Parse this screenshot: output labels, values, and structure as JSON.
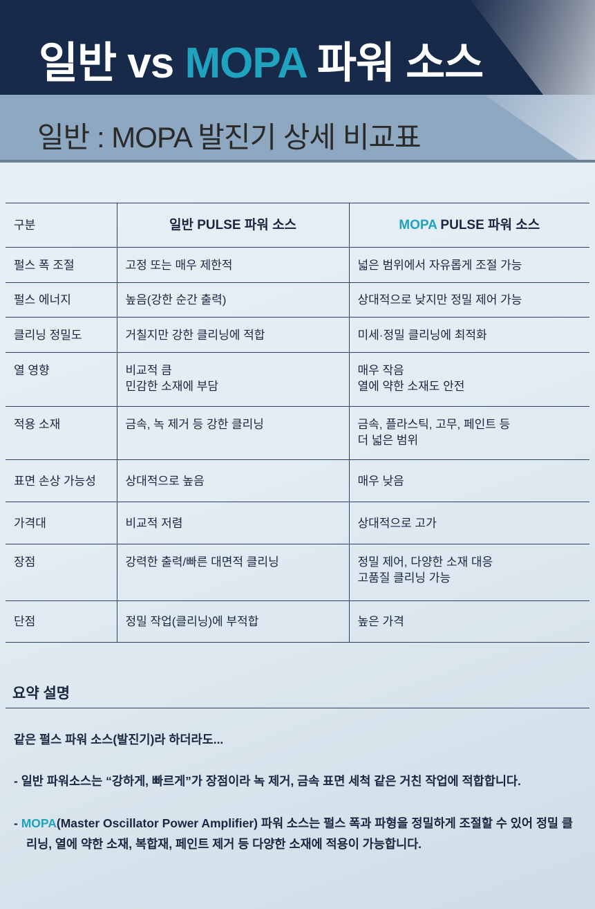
{
  "header": {
    "title_pre": "일반 vs ",
    "title_accent": "MOPA",
    "title_post": " 파워 소스",
    "subtitle": "일반 : MOPA 발진기 상세 비교표",
    "accent_color": "#1fa3bf"
  },
  "table": {
    "headers": {
      "col0": "구분",
      "col1": "일반 PULSE 파워 소스",
      "col2_accent": "MOPA",
      "col2_rest": " PULSE 파워 소스"
    },
    "rows": [
      {
        "label": "펄스 폭 조절",
        "general": [
          "고정 또는 매우 제한적"
        ],
        "mopa": [
          "넓은 범위에서 자유롭게 조절 가능"
        ]
      },
      {
        "label": "펄스 에너지",
        "general": [
          "높음(강한 순간 출력)"
        ],
        "mopa": [
          "상대적으로 낮지만 정밀 제어 가능"
        ]
      },
      {
        "label": "클리닝 정밀도",
        "general": [
          "거칠지만 강한 클리닝에 적합"
        ],
        "mopa": [
          "미세·정밀 클리닝에 최적화"
        ]
      },
      {
        "label": "열 영향",
        "general": [
          "비교적 큼",
          "민감한 소재에 부담"
        ],
        "mopa": [
          "매우 작음",
          "열에 약한 소재도 안전"
        ]
      },
      {
        "label": "적용 소재",
        "general": [
          "금속, 녹 제거 등 강한 클리닝"
        ],
        "mopa": [
          "금속, 플라스틱, 고무, 페인트 등",
          "더 넓은 범위"
        ]
      },
      {
        "label": "표면 손상 가능성",
        "general": [
          "상대적으로 높음"
        ],
        "mopa": [
          "매우 낮음"
        ]
      },
      {
        "label": "가격대",
        "general": [
          "비교적 저렴"
        ],
        "mopa": [
          "상대적으로 고가"
        ]
      },
      {
        "label": "장점",
        "general": [
          "강력한 출력/빠른 대면적 클리닝"
        ],
        "mopa": [
          "정밀 제어, 다양한 소재 대응",
          "고품질 클리닝 가능"
        ]
      },
      {
        "label": "단점",
        "general": [
          "정밀 작업(클리닝)에 부적합"
        ],
        "mopa": [
          "높은 가격"
        ]
      }
    ]
  },
  "summary": {
    "title": "요약 설명",
    "intro": "같은 펄스 파워 소스(발진기)라 하더라도...",
    "bullet1": "- 일반 파워소스는 “강하게, 빠르게”가 장점이라 녹 제거, 금속 표면 세척 같은 거친 작업에 적합합니다.",
    "bullet2_dash": "- ",
    "bullet2_accent": "MOPA",
    "bullet2_rest": "(Master Oscillator Power Amplifier) 파워 소스는 펄스 폭과 파형을 정밀하게 조절할 수 있어 정밀 클리닝, 열에 약한 소재, 복합재, 페인트 제거 등 다양한 소재에 적용이 가능합니다."
  }
}
